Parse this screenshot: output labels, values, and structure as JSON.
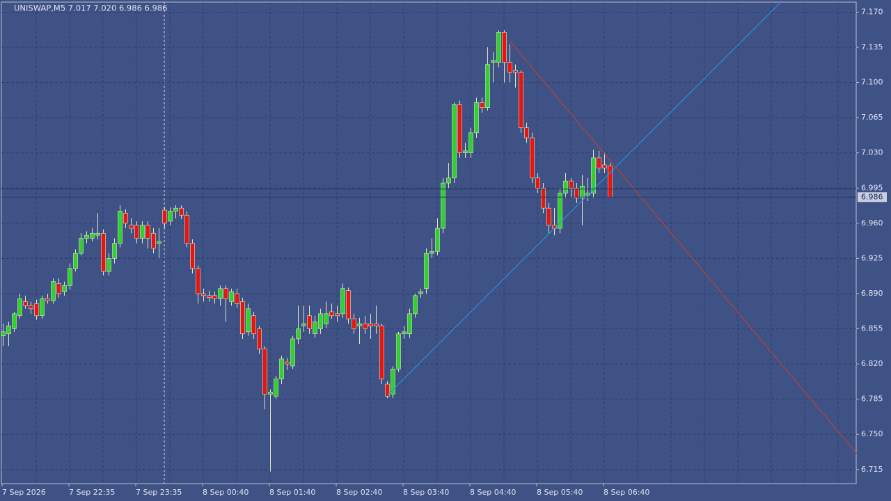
{
  "chart_data": {
    "type": "candlestick",
    "title": "UNISWAP,M5  7.017 7.020 6.986 6.986",
    "up_color": "#2fd12f",
    "down_color": "#e8140e",
    "wick_color": "#e4e4c4",
    "grid": true,
    "ylim": [
      6.701,
      7.18
    ],
    "yticks": [
      {
        "value": 7.17,
        "label": "7.170"
      },
      {
        "value": 7.135,
        "label": "7.135"
      },
      {
        "value": 7.1,
        "label": "7.100"
      },
      {
        "value": 7.065,
        "label": "7.065"
      },
      {
        "value": 7.03,
        "label": "7.030"
      },
      {
        "value": 6.995,
        "label": "6.995"
      },
      {
        "value": 6.96,
        "label": "6.960"
      },
      {
        "value": 6.925,
        "label": "6.925"
      },
      {
        "value": 6.89,
        "label": "6.890"
      },
      {
        "value": 6.855,
        "label": "6.855"
      },
      {
        "value": 6.82,
        "label": "6.820"
      },
      {
        "value": 6.785,
        "label": "6.785"
      },
      {
        "value": 6.75,
        "label": "6.750"
      },
      {
        "value": 6.715,
        "label": "6.715"
      }
    ],
    "xtick_labels": [
      "7 Sep 2026",
      "7 Sep 22:35",
      "7 Sep 23:35",
      "8 Sep 00:40",
      "8 Sep 01:40",
      "8 Sep 02:40",
      "8 Sep 03:40",
      "8 Sep 04:40",
      "8 Sep 05:40",
      "8 Sep 06:40"
    ],
    "bid": 6.986,
    "ask_line": 6.994,
    "candles": {
      "open": [
        6.848,
        6.85,
        6.855,
        6.868,
        6.882,
        6.878,
        6.88,
        6.868,
        6.885,
        6.883,
        6.9,
        6.892,
        6.898,
        6.915,
        6.93,
        6.945,
        6.945,
        6.948,
        6.95,
        6.912,
        6.925,
        6.94,
        6.97,
        6.958,
        6.958,
        6.945,
        6.958,
        6.95,
        6.94,
        6.973,
        6.962,
        6.972,
        6.975,
        6.968,
        6.94,
        6.915,
        6.89,
        6.888,
        6.888,
        6.885,
        6.895,
        6.882,
        6.89,
        6.882,
        6.852,
        6.868,
        6.855,
        6.835,
        6.79,
        6.788,
        6.805,
        6.822,
        6.818,
        6.845,
        6.858,
        6.868,
        6.85,
        6.855,
        6.86,
        6.872,
        6.87,
        6.87,
        6.893,
        6.865,
        6.858,
        6.86,
        6.86,
        6.86,
        6.858,
        6.8,
        6.79,
        6.815,
        6.85,
        6.85,
        6.87,
        6.89,
        6.895,
        6.93,
        6.932,
        6.955,
        7.0,
        7.005,
        7.078,
        7.03,
        7.03,
        7.05,
        7.08,
        7.075,
        7.12,
        7.12,
        7.15,
        7.12,
        7.112,
        7.11,
        7.055,
        7.045,
        7.005,
        6.995,
        6.975,
        6.958,
        6.955,
        6.99,
        7.002,
        6.995,
        6.985,
        6.988,
        6.99,
        7.025,
        7.018,
        7.017
      ],
      "high": [
        6.86,
        6.862,
        6.872,
        6.89,
        6.888,
        6.882,
        6.884,
        6.888,
        6.89,
        6.905,
        6.905,
        6.902,
        6.92,
        6.934,
        6.95,
        6.952,
        6.955,
        6.97,
        6.954,
        6.93,
        6.945,
        6.978,
        6.974,
        6.965,
        6.962,
        6.962,
        6.962,
        6.955,
        6.955,
        6.976,
        6.976,
        6.978,
        6.978,
        6.972,
        6.944,
        6.918,
        6.895,
        6.893,
        6.892,
        6.898,
        6.898,
        6.895,
        6.895,
        6.886,
        6.88,
        6.872,
        6.858,
        6.838,
        6.795,
        6.808,
        6.828,
        6.826,
        6.848,
        6.878,
        6.878,
        6.878,
        6.868,
        6.875,
        6.882,
        6.88,
        6.878,
        6.9,
        6.896,
        6.87,
        6.866,
        6.868,
        6.87,
        6.878,
        6.86,
        6.803,
        6.818,
        6.852,
        6.858,
        6.875,
        6.89,
        6.895,
        6.935,
        6.945,
        6.965,
        7.005,
        7.02,
        7.08,
        7.082,
        7.04,
        7.055,
        7.085,
        7.085,
        7.135,
        7.13,
        7.152,
        7.152,
        7.138,
        7.118,
        7.112,
        7.06,
        7.05,
        7.01,
        7.0,
        6.98,
        6.975,
        6.995,
        7.01,
        7.005,
        7.0,
        7.008,
        7.005,
        7.033,
        7.032,
        7.03,
        7.02
      ],
      "low": [
        6.838,
        6.838,
        6.852,
        6.865,
        6.875,
        6.87,
        6.864,
        6.865,
        6.88,
        6.88,
        6.886,
        6.888,
        6.894,
        6.912,
        6.928,
        6.94,
        6.942,
        6.944,
        6.908,
        6.908,
        6.92,
        6.936,
        6.955,
        6.95,
        6.94,
        6.94,
        6.935,
        6.93,
        6.925,
        6.955,
        6.958,
        6.965,
        6.964,
        6.936,
        6.91,
        6.88,
        6.882,
        6.882,
        6.88,
        6.878,
        6.862,
        6.878,
        6.876,
        6.845,
        6.848,
        6.845,
        6.83,
        6.775,
        6.713,
        6.785,
        6.8,
        6.814,
        6.815,
        6.84,
        6.852,
        6.85,
        6.846,
        6.85,
        6.856,
        6.865,
        6.862,
        6.866,
        6.86,
        6.85,
        6.84,
        6.85,
        6.845,
        6.85,
        6.8,
        6.786,
        6.786,
        6.812,
        6.845,
        6.846,
        6.866,
        6.886,
        6.89,
        6.925,
        6.928,
        6.95,
        6.995,
        7.0,
        7.025,
        7.025,
        7.025,
        7.045,
        7.07,
        7.072,
        7.1,
        7.115,
        7.1,
        7.1,
        7.095,
        7.05,
        7.04,
        7.0,
        6.99,
        6.97,
        6.95,
        6.948,
        6.95,
        6.985,
        6.985,
        6.98,
        6.958,
        6.982,
        6.985,
        7.01,
        7.01,
        6.986
      ],
      "close": [
        6.852,
        6.858,
        6.87,
        6.885,
        6.878,
        6.875,
        6.868,
        6.885,
        6.883,
        6.902,
        6.89,
        6.898,
        6.915,
        6.93,
        6.945,
        6.948,
        6.95,
        6.95,
        6.912,
        6.925,
        6.94,
        6.972,
        6.96,
        6.955,
        6.945,
        6.958,
        6.945,
        6.935,
        6.942,
        6.96,
        6.972,
        6.975,
        6.968,
        6.94,
        6.915,
        6.89,
        6.888,
        6.886,
        6.885,
        6.895,
        6.885,
        6.892,
        6.88,
        6.85,
        6.875,
        6.85,
        6.835,
        6.79,
        6.792,
        6.805,
        6.825,
        6.82,
        6.845,
        6.855,
        6.86,
        6.855,
        6.862,
        6.87,
        6.87,
        6.868,
        6.868,
        6.895,
        6.865,
        6.855,
        6.86,
        6.855,
        6.858,
        6.858,
        6.805,
        6.788,
        6.815,
        6.85,
        6.852,
        6.87,
        6.888,
        6.892,
        6.93,
        6.932,
        6.955,
        7.0,
        7.005,
        7.078,
        7.03,
        7.032,
        7.05,
        7.08,
        7.075,
        7.118,
        7.122,
        7.15,
        7.12,
        7.11,
        7.11,
        7.055,
        7.045,
        7.005,
        6.995,
        6.975,
        6.958,
        6.955,
        6.99,
        7.002,
        6.995,
        6.985,
        6.997,
        6.99,
        7.025,
        7.015,
        7.015,
        6.986
      ]
    },
    "trendlines": [
      {
        "color": "#1e9be8",
        "bars": [
          69,
          139.5
        ],
        "prices": [
          6.789,
          7.179
        ]
      },
      {
        "color": "#d2401e",
        "bars": [
          91,
          153.25
        ],
        "prices": [
          7.141,
          6.731
        ]
      }
    ]
  }
}
